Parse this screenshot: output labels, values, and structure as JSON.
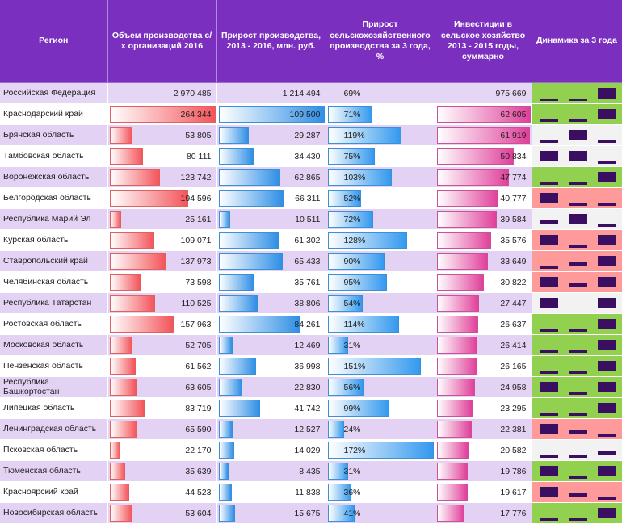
{
  "headers": {
    "region": "Регион",
    "volume": "Объем производства с/х организаций 2016",
    "growth_rub": "Прирост производства, 2013 - 2016, млн. руб.",
    "growth_pct": "Прирост сельскохозяйственного производства за 3 года, %",
    "investment": "Инвестиции в сельское хозяйство 2013 - 2015 годы, суммарно",
    "dynamics": "Динамика за 3 года"
  },
  "colors": {
    "header": "#7b2fbe",
    "volume_bar": "#f3555b",
    "growth_bar": "#2f8fe6",
    "investment_bar": "#e0409a",
    "trend_up": "#92d050",
    "trend_down": "#ff9a9a",
    "trend_mixed": "#f2f2f2",
    "marker": "#3a0f62"
  },
  "chart_data": {
    "type": "table",
    "columns": [
      "Регион",
      "Объем производства с/х организаций 2016",
      "Прирост производства, 2013 - 2016, млн. руб.",
      "Прирост сельскохозяйственного производства за 3 года, %",
      "Инвестиции в сельское хозяйство 2013 - 2015 годы, суммарно",
      "Динамика за 3 года"
    ],
    "bar_max": {
      "volume": 264344,
      "growth_rub": 109500,
      "growth_pct": 172,
      "investment": 62605
    },
    "rows": [
      {
        "region": "Российская Федерация",
        "volume": "2 970 485",
        "volume_value": 2970485,
        "growth_rub": "1 214 494",
        "growth_rub_value": 1214494,
        "growth_pct": "69%",
        "growth_pct_value": 69,
        "investment": "975 669",
        "investment_value": 975669,
        "show_bars": false,
        "dynamics_trend": "up",
        "dynamics_levels": [
          1,
          1,
          3
        ]
      },
      {
        "region": "Краснодарский край",
        "volume": "264 344",
        "volume_value": 264344,
        "growth_rub": "109 500",
        "growth_rub_value": 109500,
        "growth_pct": "71%",
        "growth_pct_value": 71,
        "investment": "62 605",
        "investment_value": 62605,
        "show_bars": true,
        "dynamics_trend": "up",
        "dynamics_levels": [
          1,
          1,
          3
        ]
      },
      {
        "region": "Брянская область",
        "volume": "53 805",
        "volume_value": 53805,
        "growth_rub": "29 287",
        "growth_rub_value": 29287,
        "growth_pct": "119%",
        "growth_pct_value": 119,
        "investment": "61 919",
        "investment_value": 61919,
        "show_bars": true,
        "dynamics_trend": "mixed",
        "dynamics_levels": [
          1,
          3,
          1
        ]
      },
      {
        "region": "Тамбовская область",
        "volume": "80 111",
        "volume_value": 80111,
        "growth_rub": "34 430",
        "growth_rub_value": 34430,
        "growth_pct": "75%",
        "growth_pct_value": 75,
        "investment": "50 834",
        "investment_value": 50834,
        "show_bars": true,
        "dynamics_trend": "mixed",
        "dynamics_levels": [
          3,
          3,
          1
        ]
      },
      {
        "region": "Воронежская область",
        "volume": "123 742",
        "volume_value": 123742,
        "growth_rub": "62 865",
        "growth_rub_value": 62865,
        "growth_pct": "103%",
        "growth_pct_value": 103,
        "investment": "47 774",
        "investment_value": 47774,
        "show_bars": true,
        "dynamics_trend": "up",
        "dynamics_levels": [
          1,
          1,
          3
        ]
      },
      {
        "region": "Белгородская область",
        "volume": "194 596",
        "volume_value": 194596,
        "growth_rub": "66 311",
        "growth_rub_value": 66311,
        "growth_pct": "52%",
        "growth_pct_value": 52,
        "investment": "40 777",
        "investment_value": 40777,
        "show_bars": true,
        "dynamics_trend": "down",
        "dynamics_levels": [
          3,
          1,
          1
        ]
      },
      {
        "region": "Республика Марий Эл",
        "volume": "25 161",
        "volume_value": 25161,
        "growth_rub": "10 511",
        "growth_rub_value": 10511,
        "growth_pct": "72%",
        "growth_pct_value": 72,
        "investment": "39 584",
        "investment_value": 39584,
        "show_bars": true,
        "dynamics_trend": "mixed",
        "dynamics_levels": [
          2,
          3,
          1
        ]
      },
      {
        "region": "Курская область",
        "volume": "109 071",
        "volume_value": 109071,
        "growth_rub": "61 302",
        "growth_rub_value": 61302,
        "growth_pct": "128%",
        "growth_pct_value": 128,
        "investment": "35 576",
        "investment_value": 35576,
        "show_bars": true,
        "dynamics_trend": "down",
        "dynamics_levels": [
          3,
          1,
          3
        ]
      },
      {
        "region": "Ставропольский край",
        "volume": "137 973",
        "volume_value": 137973,
        "growth_rub": "65 433",
        "growth_rub_value": 65433,
        "growth_pct": "90%",
        "growth_pct_value": 90,
        "investment": "33 649",
        "investment_value": 33649,
        "show_bars": true,
        "dynamics_trend": "down",
        "dynamics_levels": [
          1,
          2,
          3
        ]
      },
      {
        "region": "Челябинская область",
        "volume": "73 598",
        "volume_value": 73598,
        "growth_rub": "35 761",
        "growth_rub_value": 35761,
        "growth_pct": "95%",
        "growth_pct_value": 95,
        "investment": "30 822",
        "investment_value": 30822,
        "show_bars": true,
        "dynamics_trend": "down",
        "dynamics_levels": [
          3,
          2,
          3
        ]
      },
      {
        "region": "Республика Татарстан",
        "volume": "110 525",
        "volume_value": 110525,
        "growth_rub": "38 806",
        "growth_rub_value": 38806,
        "growth_pct": "54%",
        "growth_pct_value": 54,
        "investment": "27 447",
        "investment_value": 27447,
        "show_bars": true,
        "dynamics_trend": "mixed",
        "dynamics_levels": [
          3,
          0,
          3
        ]
      },
      {
        "region": "Ростовская область",
        "volume": "157 963",
        "volume_value": 157963,
        "growth_rub": "84 261",
        "growth_rub_value": 84261,
        "growth_pct": "114%",
        "growth_pct_value": 114,
        "investment": "26 637",
        "investment_value": 26637,
        "show_bars": true,
        "dynamics_trend": "up",
        "dynamics_levels": [
          1,
          1,
          3
        ]
      },
      {
        "region": "Московская область",
        "volume": "52 705",
        "volume_value": 52705,
        "growth_rub": "12 469",
        "growth_rub_value": 12469,
        "growth_pct": "31%",
        "growth_pct_value": 31,
        "investment": "26 414",
        "investment_value": 26414,
        "show_bars": true,
        "dynamics_trend": "up",
        "dynamics_levels": [
          1,
          1,
          3
        ]
      },
      {
        "region": "Пензенская область",
        "volume": "61 562",
        "volume_value": 61562,
        "growth_rub": "36 998",
        "growth_rub_value": 36998,
        "growth_pct": "151%",
        "growth_pct_value": 151,
        "investment": "26 165",
        "investment_value": 26165,
        "show_bars": true,
        "dynamics_trend": "up",
        "dynamics_levels": [
          1,
          1,
          3
        ]
      },
      {
        "region": "Республика Башкортостан",
        "volume": "63 605",
        "volume_value": 63605,
        "growth_rub": "22 830",
        "growth_rub_value": 22830,
        "growth_pct": "56%",
        "growth_pct_value": 56,
        "investment": "24 958",
        "investment_value": 24958,
        "show_bars": true,
        "dynamics_trend": "up",
        "dynamics_levels": [
          3,
          1,
          3
        ]
      },
      {
        "region": "Липецкая область",
        "volume": "83 719",
        "volume_value": 83719,
        "growth_rub": "41 742",
        "growth_rub_value": 41742,
        "growth_pct": "99%",
        "growth_pct_value": 99,
        "investment": "23 295",
        "investment_value": 23295,
        "show_bars": true,
        "dynamics_trend": "up",
        "dynamics_levels": [
          1,
          1,
          3
        ]
      },
      {
        "region": "Ленинградская область",
        "volume": "65 590",
        "volume_value": 65590,
        "growth_rub": "12 527",
        "growth_rub_value": 12527,
        "growth_pct": "24%",
        "growth_pct_value": 24,
        "investment": "22 381",
        "investment_value": 22381,
        "show_bars": true,
        "dynamics_trend": "down",
        "dynamics_levels": [
          3,
          2,
          1
        ]
      },
      {
        "region": "Псковская область",
        "volume": "22 170",
        "volume_value": 22170,
        "growth_rub": "14 029",
        "growth_rub_value": 14029,
        "growth_pct": "172%",
        "growth_pct_value": 172,
        "investment": "20 582",
        "investment_value": 20582,
        "show_bars": true,
        "dynamics_trend": "mixed",
        "dynamics_levels": [
          1,
          1,
          2
        ]
      },
      {
        "region": "Тюменская область",
        "volume": "35 639",
        "volume_value": 35639,
        "growth_rub": "8 435",
        "growth_rub_value": 8435,
        "growth_pct": "31%",
        "growth_pct_value": 31,
        "investment": "19 786",
        "investment_value": 19786,
        "show_bars": true,
        "dynamics_trend": "up",
        "dynamics_levels": [
          3,
          1,
          3
        ]
      },
      {
        "region": "Красноярский край",
        "volume": "44 523",
        "volume_value": 44523,
        "growth_rub": "11 838",
        "growth_rub_value": 11838,
        "growth_pct": "36%",
        "growth_pct_value": 36,
        "investment": "19 617",
        "investment_value": 19617,
        "show_bars": true,
        "dynamics_trend": "down",
        "dynamics_levels": [
          3,
          2,
          1
        ]
      },
      {
        "region": "Новосибирская область",
        "volume": "53 604",
        "volume_value": 53604,
        "growth_rub": "15 675",
        "growth_rub_value": 15675,
        "growth_pct": "41%",
        "growth_pct_value": 41,
        "investment": "17 776",
        "investment_value": 17776,
        "show_bars": true,
        "dynamics_trend": "up",
        "dynamics_levels": [
          1,
          1,
          3
        ]
      }
    ]
  }
}
